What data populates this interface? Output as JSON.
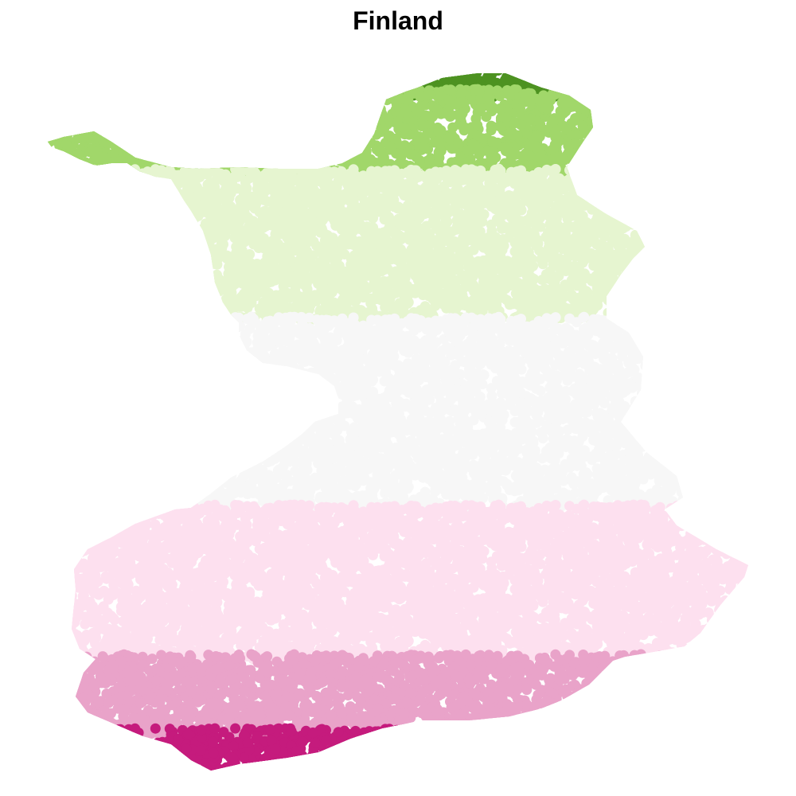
{
  "title": "Finland",
  "map": {
    "description_type": "dot-density map with latitude-banded color scale",
    "bands": [
      {
        "name": "band-1-north-tip",
        "color": "#4d9221"
      },
      {
        "name": "band-2-north",
        "color": "#a1d76a"
      },
      {
        "name": "band-3-upper-middle",
        "color": "#e6f5d0"
      },
      {
        "name": "band-4-middle",
        "color": "#f7f7f7"
      },
      {
        "name": "band-5-lower-middle",
        "color": "#fde0ef"
      },
      {
        "name": "band-6-south",
        "color": "#e9a3c9"
      },
      {
        "name": "band-7-south-coast",
        "color": "#c51b7d"
      }
    ]
  }
}
